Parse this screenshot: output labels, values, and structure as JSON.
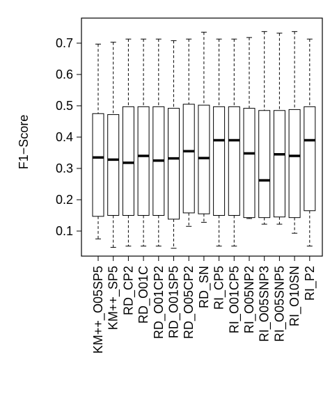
{
  "chart_data": {
    "type": "boxplot",
    "title": "",
    "xlabel": "",
    "ylabel": "F1−Score",
    "ylim": [
      0.02,
      0.78
    ],
    "yticks": [
      0.1,
      0.2,
      0.3,
      0.4,
      0.5,
      0.6,
      0.7
    ],
    "ytick_labels": [
      "0.1",
      "0.2",
      "0.3",
      "0.4",
      "0.5",
      "0.6",
      "0.7"
    ],
    "grid": false,
    "categories": [
      "KM++_O05SP5",
      "KM++_SP5",
      "RD_CP2",
      "RD_O01C",
      "RD_O01CP2",
      "RD_O01SP5",
      "RD_O05CP2",
      "RD_SN",
      "RI_CP5",
      "RI_O01CP5",
      "RI_O05NP2",
      "RI_O05SNP3",
      "RI_O05SNP5",
      "RI_O10SN",
      "RI_P2"
    ],
    "boxes": [
      {
        "whisker_low": 0.075,
        "q1": 0.147,
        "median": 0.335,
        "q3": 0.475,
        "whisker_high": 0.697
      },
      {
        "whisker_low": 0.048,
        "q1": 0.15,
        "median": 0.328,
        "q3": 0.472,
        "whisker_high": 0.703
      },
      {
        "whisker_low": 0.052,
        "q1": 0.15,
        "median": 0.318,
        "q3": 0.497,
        "whisker_high": 0.713
      },
      {
        "whisker_low": 0.052,
        "q1": 0.15,
        "median": 0.34,
        "q3": 0.497,
        "whisker_high": 0.713
      },
      {
        "whisker_low": 0.052,
        "q1": 0.15,
        "median": 0.325,
        "q3": 0.497,
        "whisker_high": 0.713
      },
      {
        "whisker_low": 0.045,
        "q1": 0.138,
        "median": 0.332,
        "q3": 0.492,
        "whisker_high": 0.708
      },
      {
        "whisker_low": 0.115,
        "q1": 0.158,
        "median": 0.355,
        "q3": 0.505,
        "whisker_high": 0.713
      },
      {
        "whisker_low": 0.128,
        "q1": 0.155,
        "median": 0.333,
        "q3": 0.502,
        "whisker_high": 0.735
      },
      {
        "whisker_low": 0.052,
        "q1": 0.15,
        "median": 0.39,
        "q3": 0.497,
        "whisker_high": 0.713
      },
      {
        "whisker_low": 0.052,
        "q1": 0.15,
        "median": 0.39,
        "q3": 0.497,
        "whisker_high": 0.713
      },
      {
        "whisker_low": 0.14,
        "q1": 0.143,
        "median": 0.348,
        "q3": 0.492,
        "whisker_high": 0.718
      },
      {
        "whisker_low": 0.122,
        "q1": 0.143,
        "median": 0.262,
        "q3": 0.485,
        "whisker_high": 0.737
      },
      {
        "whisker_low": 0.122,
        "q1": 0.145,
        "median": 0.345,
        "q3": 0.485,
        "whisker_high": 0.732
      },
      {
        "whisker_low": 0.093,
        "q1": 0.143,
        "median": 0.34,
        "q3": 0.488,
        "whisker_high": 0.737
      },
      {
        "whisker_low": 0.052,
        "q1": 0.165,
        "median": 0.39,
        "q3": 0.497,
        "whisker_high": 0.713
      }
    ]
  }
}
